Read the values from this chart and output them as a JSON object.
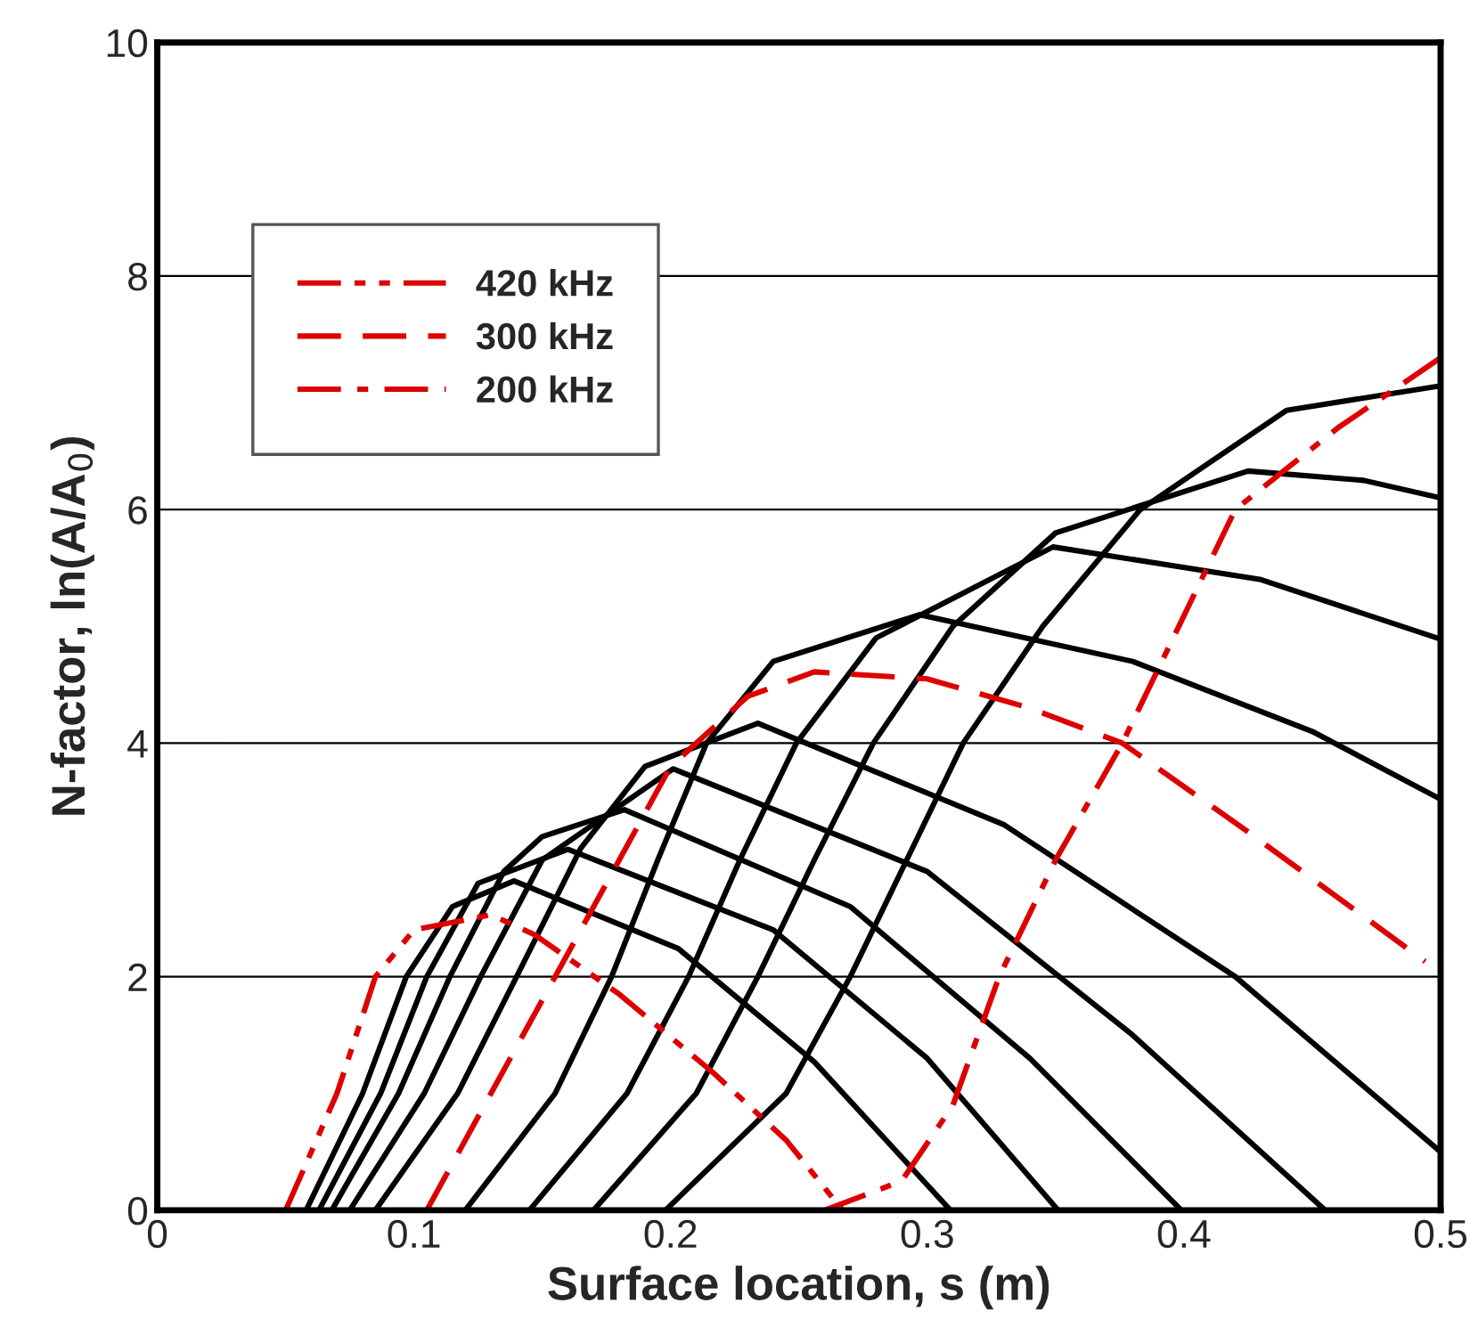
{
  "chart_data": {
    "type": "line",
    "xlabel": "Surface location, s (m)",
    "ylabel": "N-factor, ln(A/A$_{0}$)",
    "xlim": [
      0,
      0.5
    ],
    "xticks": [
      0,
      0.1,
      0.2,
      0.3,
      0.4,
      0.5
    ],
    "ylim": [
      0,
      10
    ],
    "yticks": [
      0,
      2,
      4,
      6,
      8,
      10
    ],
    "grid": "y",
    "legend": "top left",
    "marker": "none",
    "series": [
      {
        "color": "#000000",
        "line_style": "solid",
        "x": [
          0.058,
          0.08,
          0.097,
          0.115,
          0.139,
          0.203,
          0.256,
          0.309
        ],
        "values": [
          0,
          1,
          2,
          2.6,
          2.82,
          2.24,
          1.27,
          0
        ]
      },
      {
        "color": "#000000",
        "line_style": "solid",
        "x": [
          0.063,
          0.087,
          0.105,
          0.125,
          0.16,
          0.24,
          0.3,
          0.351
        ],
        "values": [
          0,
          1,
          2,
          2.8,
          3.09,
          2.4,
          1.3,
          0
        ]
      },
      {
        "color": "#000000",
        "line_style": "solid",
        "x": [
          0.068,
          0.094,
          0.114,
          0.135,
          0.15,
          0.182,
          0.27,
          0.34,
          0.399
        ],
        "values": [
          0,
          1,
          2,
          2.9,
          3.2,
          3.43,
          2.6,
          1.3,
          0
        ]
      },
      {
        "color": "#000000",
        "line_style": "solid",
        "x": [
          0.075,
          0.104,
          0.126,
          0.15,
          0.201,
          0.3,
          0.38,
          0.455
        ],
        "values": [
          0,
          1,
          2,
          3.0,
          3.78,
          2.9,
          1.5,
          0
        ]
      },
      {
        "color": "#000000",
        "line_style": "solid",
        "x": [
          0.085,
          0.117,
          0.14,
          0.165,
          0.19,
          0.234,
          0.33,
          0.42,
          0.5
        ],
        "values": [
          0,
          1,
          2,
          3.1,
          3.8,
          4.17,
          3.3,
          2.0,
          0.5
        ]
      },
      {
        "color": "#000000",
        "line_style": "solid",
        "x": [
          0.12,
          0.155,
          0.177,
          0.195,
          0.214,
          0.24,
          0.297,
          0.38,
          0.45,
          0.5
        ],
        "values": [
          0,
          1,
          2,
          3,
          4,
          4.7,
          5.1,
          4.7,
          4.1,
          3.52
        ]
      },
      {
        "color": "#000000",
        "line_style": "solid",
        "x": [
          0.145,
          0.183,
          0.207,
          0.227,
          0.249,
          0.28,
          0.349,
          0.43,
          0.5
        ],
        "values": [
          0,
          1,
          2,
          3,
          4,
          4.9,
          5.68,
          5.4,
          4.89
        ]
      },
      {
        "color": "#000000",
        "line_style": "solid",
        "x": [
          0.17,
          0.21,
          0.234,
          0.256,
          0.279,
          0.31,
          0.35,
          0.425,
          0.47,
          0.5
        ],
        "values": [
          0,
          1,
          2,
          3,
          4,
          5,
          5.8,
          6.33,
          6.25,
          6.1
        ]
      },
      {
        "color": "#000000",
        "line_style": "solid",
        "x": [
          0.198,
          0.245,
          0.27,
          0.292,
          0.314,
          0.345,
          0.383,
          0.44,
          0.5
        ],
        "values": [
          0,
          1,
          2,
          3,
          4,
          5,
          6,
          6.85,
          7.06
        ]
      },
      {
        "name": "420 kHz",
        "color": "#dd0000",
        "line_style": "dashdotdot",
        "x": [
          0.05,
          0.07,
          0.085,
          0.1,
          0.13,
          0.147,
          0.18,
          0.217,
          0.245,
          0.267
        ],
        "values": [
          0,
          1,
          2,
          2.4,
          2.53,
          2.36,
          1.85,
          1.17,
          0.6,
          0
        ]
      },
      {
        "name": "300 kHz",
        "color": "#dd0000",
        "line_style": "dashed",
        "x": [
          0.105,
          0.13,
          0.155,
          0.18,
          0.2,
          0.23,
          0.256,
          0.3,
          0.34,
          0.376,
          0.425,
          0.494
        ],
        "values": [
          0,
          1,
          2,
          3,
          3.8,
          4.4,
          4.61,
          4.55,
          4.3,
          4.0,
          3.24,
          2.13
        ]
      },
      {
        "name": "200 kHz",
        "color": "#dd0000",
        "line_style": "dashdot",
        "x": [
          0.26,
          0.29,
          0.31,
          0.328,
          0.35,
          0.376,
          0.42,
          0.46,
          0.5
        ],
        "values": [
          0,
          0.25,
          0.9,
          2,
          3,
          4,
          6,
          6.7,
          7.3
        ]
      }
    ]
  }
}
